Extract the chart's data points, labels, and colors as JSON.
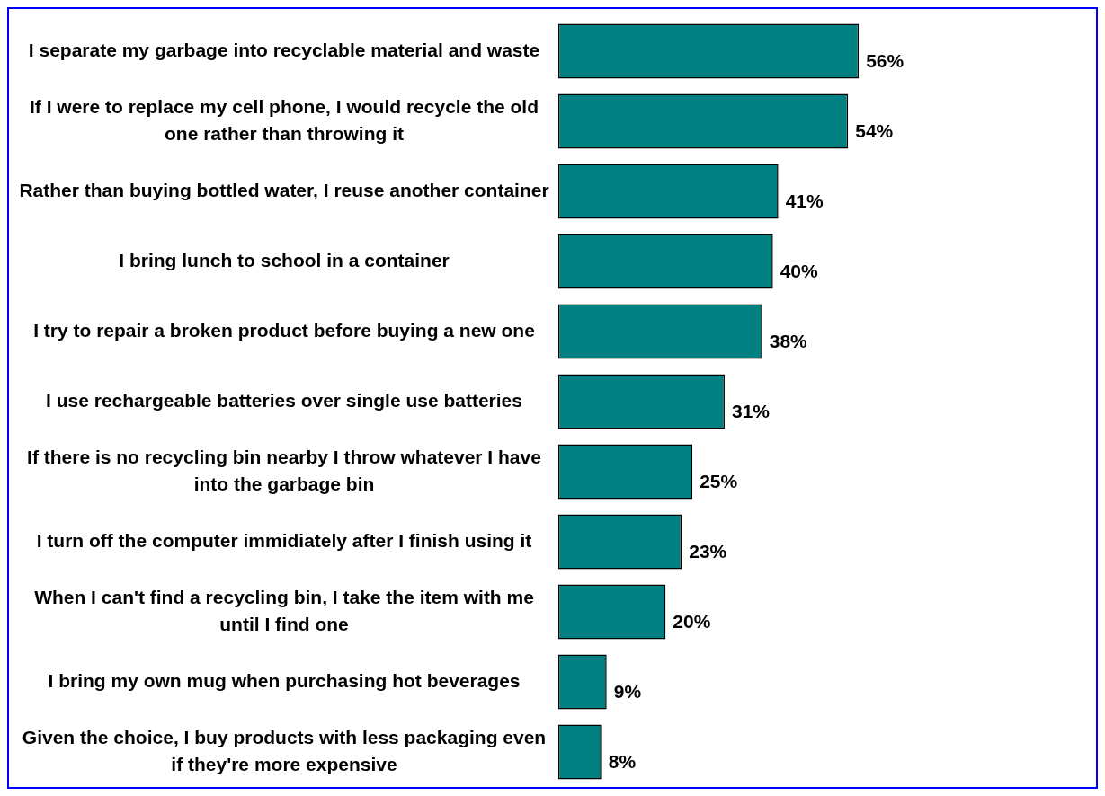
{
  "chart_data": {
    "type": "bar",
    "orientation": "horizontal",
    "data_labels": true,
    "grid": false,
    "legend": false,
    "tick_labels": "y",
    "categories": [
      "I separate my garbage into recyclable material and waste",
      "If I were to replace my cell phone, I would recycle the old one rather than throwing it",
      "Rather than buying bottled water, I reuse another container",
      "I bring lunch to school in a container",
      "I try to repair a broken product before buying a new one",
      "I use rechargeable batteries over single use batteries",
      "If there is no recycling bin nearby I throw whatever I have into the garbage bin",
      "I turn off the computer immidiately after I finish using it",
      "When I can't find a recycling bin, I take the item with me until I find one",
      "I bring my own mug when purchasing hot beverages",
      "Given the choice, I buy products with less packaging even if they're more expensive"
    ],
    "series": [
      {
        "color": "#008080",
        "values": [
          56,
          54,
          41,
          40,
          38,
          31,
          25,
          23,
          20,
          9,
          8
        ],
        "value_labels": [
          "56%",
          "54%",
          "41%",
          "40%",
          "38%",
          "31%",
          "25%",
          "23%",
          "20%",
          "9%",
          "8%"
        ]
      }
    ]
  }
}
